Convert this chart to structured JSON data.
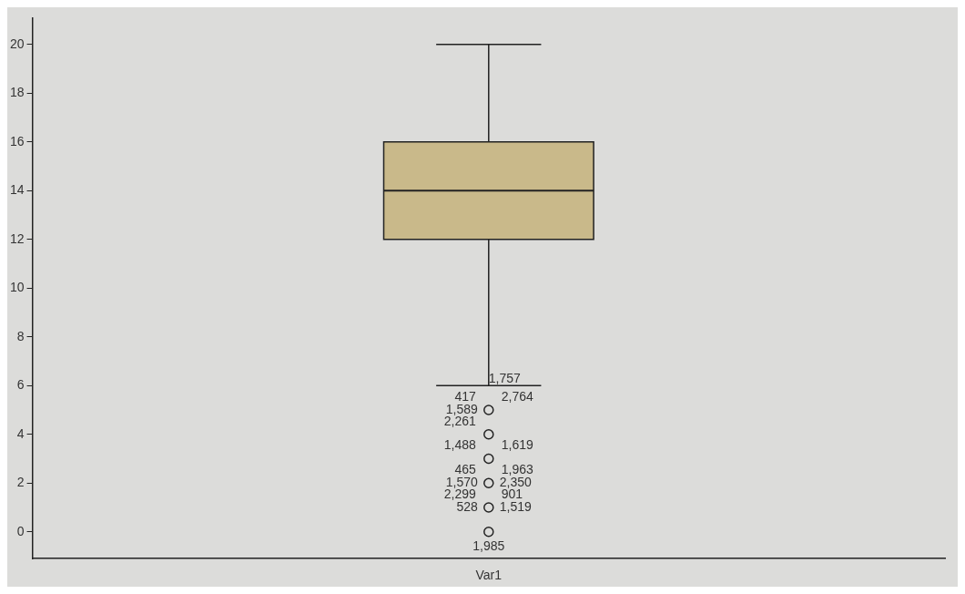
{
  "chart_data": {
    "type": "box",
    "categories": [
      "Var1"
    ],
    "ylim": [
      -1.1,
      21.1
    ],
    "yticks": [
      0,
      2,
      4,
      6,
      8,
      10,
      12,
      14,
      16,
      18,
      20
    ],
    "grid": false,
    "color": "#c9b98a",
    "boxes": [
      {
        "low": 6,
        "q1": 12,
        "median": 14,
        "q3": 16,
        "high": 20
      }
    ],
    "marker": "circle",
    "series": [
      {
        "type": "scatter",
        "color": "#222222",
        "x": [
          "Var1",
          "Var1",
          "Var1",
          "Var1",
          "Var1",
          "Var1"
        ],
        "values": [
          5,
          4,
          3,
          2,
          1,
          0
        ]
      }
    ],
    "annotations": [
      {
        "text": "1,757",
        "x": "Var1",
        "y": 6
      },
      {
        "text": "417",
        "x": "Var1",
        "y": 5
      },
      {
        "text": "2,764",
        "x": "Var1",
        "y": 5
      },
      {
        "text": "1,589",
        "x": "Var1",
        "y": 5
      },
      {
        "text": "2,261",
        "x": "Var1",
        "y": 4
      },
      {
        "text": "1,488",
        "x": "Var1",
        "y": 3
      },
      {
        "text": "1,619",
        "x": "Var1",
        "y": 3
      },
      {
        "text": "465",
        "x": "Var1",
        "y": 2
      },
      {
        "text": "1,963",
        "x": "Var1",
        "y": 2
      },
      {
        "text": "1,570",
        "x": "Var1",
        "y": 2
      },
      {
        "text": "2,350",
        "x": "Var1",
        "y": 2
      },
      {
        "text": "2,299",
        "x": "Var1",
        "y": 1
      },
      {
        "text": "901",
        "x": "Var1",
        "y": 1
      },
      {
        "text": "528",
        "x": "Var1",
        "y": 1
      },
      {
        "text": "1,519",
        "x": "Var1",
        "y": 1
      },
      {
        "text": "1,985",
        "x": "Var1",
        "y": 0
      }
    ]
  }
}
